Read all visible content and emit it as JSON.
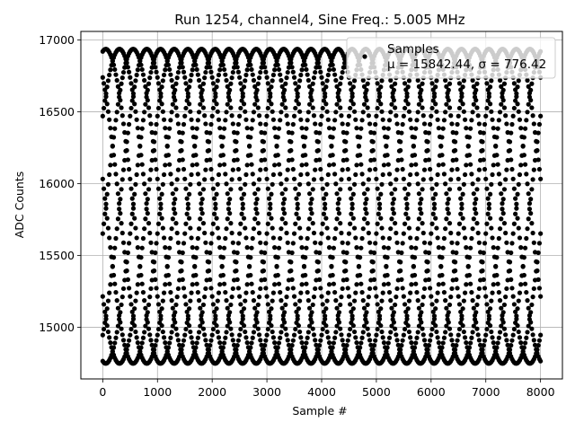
{
  "chart_data": {
    "type": "scatter",
    "title": "Run 1254, channel4, Sine Freq.: 5.005 MHz",
    "xlabel": "Sample #",
    "ylabel": "ADC Counts",
    "xlim": [
      -400,
      8400
    ],
    "ylim": [
      14640,
      17060
    ],
    "xticks": [
      0,
      1000,
      2000,
      3000,
      4000,
      5000,
      6000,
      7000,
      8000
    ],
    "yticks": [
      15000,
      15500,
      16000,
      16500,
      17000
    ],
    "grid": true,
    "legend": {
      "placement": "upper-right",
      "entries": [
        {
          "label": "Samples",
          "stats": "μ = 15842.44, σ = 776.42"
        }
      ]
    },
    "series": [
      {
        "name": "Samples",
        "color": "#000000",
        "marker": "circle",
        "signal": {
          "mean": 15842.44,
          "amplitude": 1095,
          "period_samples": 2000,
          "phases_deg": [
            80,
            125,
            170,
            215,
            260,
            305,
            350,
            35
          ],
          "x_range": [
            0,
            8000
          ]
        }
      }
    ]
  }
}
